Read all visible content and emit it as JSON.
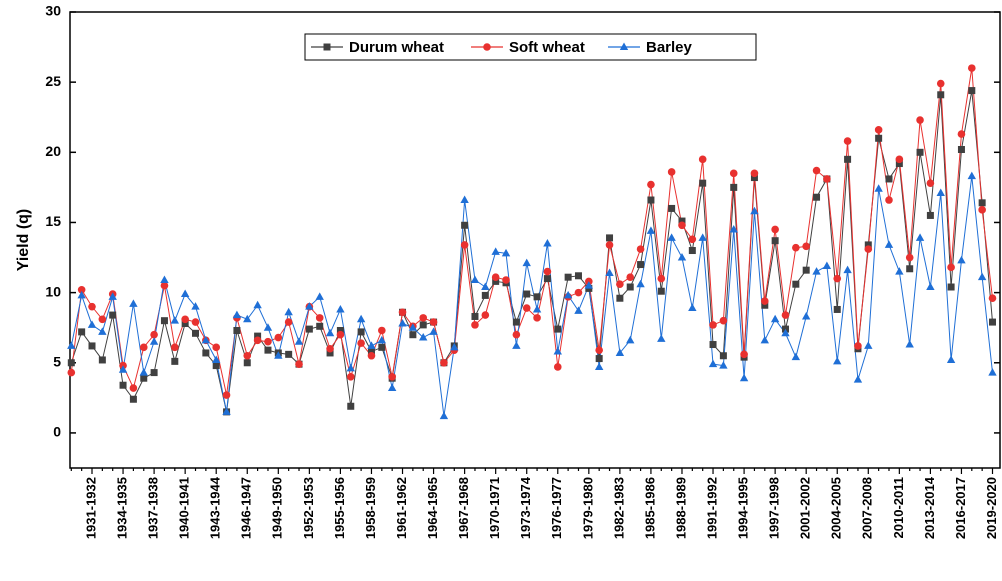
{
  "chart_data": {
    "type": "line",
    "y_label": "Yield (q)",
    "categories": [
      null,
      null,
      "1931-1932",
      null,
      null,
      "1934-1935",
      null,
      null,
      "1937-1938",
      null,
      null,
      "1940-1941",
      null,
      null,
      "1943-1944",
      null,
      null,
      "1946-1947",
      null,
      null,
      "1949-1950",
      null,
      null,
      "1952-1953",
      null,
      null,
      "1955-1956",
      null,
      null,
      "1958-1959",
      null,
      null,
      "1961-1962",
      null,
      null,
      "1964-1965",
      null,
      null,
      "1967-1968",
      null,
      null,
      "1970-1971",
      null,
      null,
      "1973-1974",
      null,
      null,
      "1976-1977",
      null,
      null,
      "1979-1980",
      null,
      null,
      "1982-1983",
      null,
      null,
      "1985-1986",
      null,
      null,
      "1988-1989",
      null,
      null,
      "1991-1992",
      null,
      null,
      "1994-1995",
      null,
      null,
      "1997-1998",
      null,
      null,
      "2001-2002",
      null,
      null,
      "2004-2005",
      null,
      null,
      "2007-2008",
      null,
      null,
      "2010-2011",
      null,
      null,
      "2013-2014",
      null,
      null,
      "2016-2017",
      null,
      null,
      "2019-2020"
    ],
    "series": [
      {
        "name": "Durum wheat",
        "color": "#404040",
        "marker": "square",
        "values": [
          5.0,
          7.2,
          6.2,
          5.2,
          8.4,
          3.4,
          2.4,
          3.9,
          4.3,
          8.0,
          5.1,
          7.8,
          7.1,
          5.7,
          4.8,
          1.5,
          7.3,
          5.0,
          6.9,
          5.9,
          5.7,
          5.6,
          4.9,
          7.4,
          7.6,
          5.7,
          7.3,
          1.9,
          7.2,
          5.8,
          6.1,
          3.9,
          8.6,
          7.0,
          7.7,
          7.9,
          5.0,
          6.2,
          14.8,
          8.3,
          9.8,
          10.8,
          10.7,
          7.9,
          9.9,
          9.7,
          11.0,
          7.4,
          11.1,
          11.2,
          10.3,
          5.3,
          13.9,
          9.6,
          10.4,
          12.0,
          16.6,
          10.1,
          16.0,
          15.1,
          13.0,
          17.8,
          6.3,
          5.5,
          17.5,
          5.4,
          18.2,
          9.1,
          13.7,
          7.4,
          10.6,
          11.6,
          16.8,
          18.1,
          8.8,
          19.5,
          6.0,
          13.4,
          21.0,
          18.1,
          19.2,
          11.7,
          20.0,
          15.5,
          24.1,
          10.4,
          20.2,
          24.4,
          16.4,
          7.9
        ]
      },
      {
        "name": "Soft wheat",
        "color": "#e8312f",
        "marker": "circle",
        "values": [
          4.3,
          10.2,
          9.0,
          8.1,
          9.9,
          4.8,
          3.2,
          6.1,
          7.0,
          10.5,
          6.1,
          8.1,
          7.9,
          6.6,
          6.1,
          2.7,
          8.2,
          5.5,
          6.6,
          6.5,
          6.8,
          7.9,
          4.9,
          9.0,
          8.2,
          6.0,
          7.0,
          4.0,
          6.4,
          5.5,
          7.3,
          4.0,
          8.6,
          7.6,
          8.2,
          7.9,
          5.0,
          5.9,
          13.4,
          7.7,
          8.4,
          11.1,
          10.9,
          7.0,
          8.9,
          8.2,
          11.5,
          4.7,
          9.7,
          10.0,
          10.8,
          5.9,
          13.4,
          10.6,
          11.1,
          13.1,
          17.7,
          11.0,
          18.6,
          14.8,
          13.8,
          19.5,
          7.7,
          8.0,
          18.5,
          5.6,
          18.5,
          9.4,
          14.5,
          8.4,
          13.2,
          13.3,
          18.7,
          18.1,
          11.0,
          20.8,
          6.2,
          13.1,
          21.6,
          16.6,
          19.5,
          12.5,
          22.3,
          17.8,
          24.9,
          11.8,
          21.3,
          26.0,
          15.9,
          9.6
        ]
      },
      {
        "name": "Barley",
        "color": "#1f6fd6",
        "marker": "triangle",
        "values": [
          6.2,
          9.8,
          7.7,
          7.2,
          9.7,
          4.5,
          9.2,
          4.3,
          6.5,
          10.9,
          8.0,
          9.9,
          9.0,
          6.6,
          5.2,
          1.5,
          8.4,
          8.1,
          9.1,
          7.5,
          5.5,
          8.6,
          6.5,
          9.0,
          9.7,
          7.1,
          8.8,
          4.6,
          8.1,
          6.2,
          6.6,
          3.2,
          7.8,
          7.5,
          6.8,
          7.2,
          1.2,
          6.1,
          16.6,
          10.9,
          10.4,
          12.9,
          12.8,
          6.2,
          12.1,
          8.8,
          13.5,
          5.8,
          9.8,
          8.7,
          10.5,
          4.7,
          11.4,
          5.7,
          6.6,
          10.6,
          14.4,
          6.7,
          13.9,
          12.5,
          8.9,
          13.9,
          4.9,
          4.8,
          14.5,
          3.9,
          15.8,
          6.6,
          8.1,
          7.1,
          5.4,
          8.3,
          11.5,
          11.9,
          5.1,
          11.6,
          3.8,
          6.2,
          17.4,
          13.4,
          11.5,
          6.3,
          13.9,
          10.4,
          17.1,
          5.2,
          12.3,
          18.3,
          11.1,
          4.3
        ]
      }
    ],
    "ylim": [
      -2.5,
      30
    ],
    "yticks": [
      0,
      5,
      10,
      15,
      20,
      25,
      30
    ],
    "grid": false,
    "legend": "top"
  }
}
